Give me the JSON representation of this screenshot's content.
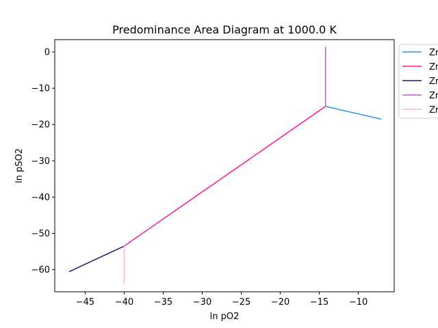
{
  "chart_data": {
    "type": "line",
    "title": "Predominance Area Diagram at 1000.0 K",
    "xlabel": "ln pO2",
    "ylabel": "ln pSO2",
    "xlim": [
      -48.9,
      -5.4
    ],
    "ylim": [
      -66.1,
      3.4
    ],
    "xticks": [
      -45,
      -40,
      -35,
      -30,
      -25,
      -20,
      -15,
      -10
    ],
    "yticks": [
      0,
      -10,
      -20,
      -30,
      -40,
      -50,
      -60
    ],
    "xtick_labels": [
      "−45",
      "−40",
      "−35",
      "−30",
      "−25",
      "−20",
      "−15",
      "−10"
    ],
    "ytick_labels": [
      "0",
      "−10",
      "−20",
      "−30",
      "−40",
      "−50",
      "−60"
    ],
    "grid": false,
    "legend_position": "outside upper right",
    "series": [
      {
        "name": "Zr",
        "color": "#1e90ff",
        "x": [
          -14.2,
          -7.1
        ],
        "y": [
          -15.0,
          -18.5
        ]
      },
      {
        "name": "Zr",
        "color": "#ff1493",
        "x": [
          -40.0,
          -14.2
        ],
        "y": [
          -53.5,
          -15.0
        ]
      },
      {
        "name": "Zr",
        "color": "#191970",
        "x": [
          -47.0,
          -40.0
        ],
        "y": [
          -60.5,
          -53.5
        ]
      },
      {
        "name": "Zr",
        "color": "#ba55d3",
        "x": [
          -14.2,
          -14.2
        ],
        "y": [
          -15.0,
          1.3
        ]
      },
      {
        "name": "Zr",
        "color": "#ffb6c1",
        "x": [
          -40.0,
          -40.0
        ],
        "y": [
          -53.5,
          -64.0
        ]
      }
    ]
  }
}
